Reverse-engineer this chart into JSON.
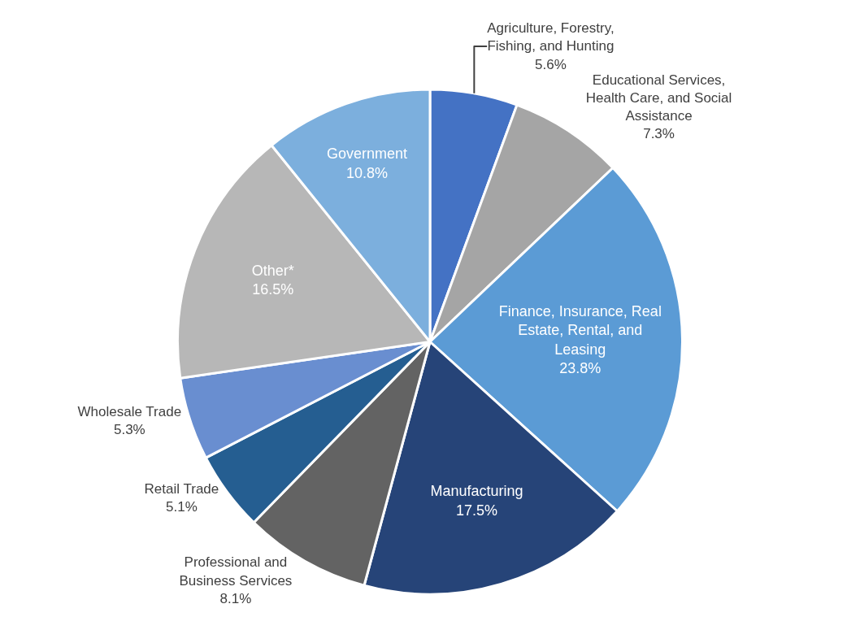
{
  "chart_data": {
    "type": "pie",
    "categories": [
      "Agriculture, Forestry, Fishing, and Hunting",
      "Educational Services, Health Care, and Social Assistance",
      "Finance, Insurance, Real Estate, Rental, and Leasing",
      "Manufacturing",
      "Professional and Business Services",
      "Retail Trade",
      "Wholesale Trade",
      "Other*",
      "Government"
    ],
    "values": [
      5.6,
      7.3,
      23.8,
      17.5,
      8.1,
      5.1,
      5.3,
      16.5,
      10.8
    ],
    "value_labels": [
      "5.6%",
      "7.3%",
      "23.8%",
      "17.5%",
      "8.1%",
      "5.1%",
      "5.3%",
      "16.5%",
      "10.8%"
    ],
    "colors": [
      "#4472c4",
      "#a5a5a5",
      "#5b9bd5",
      "#264478",
      "#636363",
      "#255e91",
      "#698ed0",
      "#b7b7b7",
      "#7cafdd"
    ],
    "legend": false
  }
}
